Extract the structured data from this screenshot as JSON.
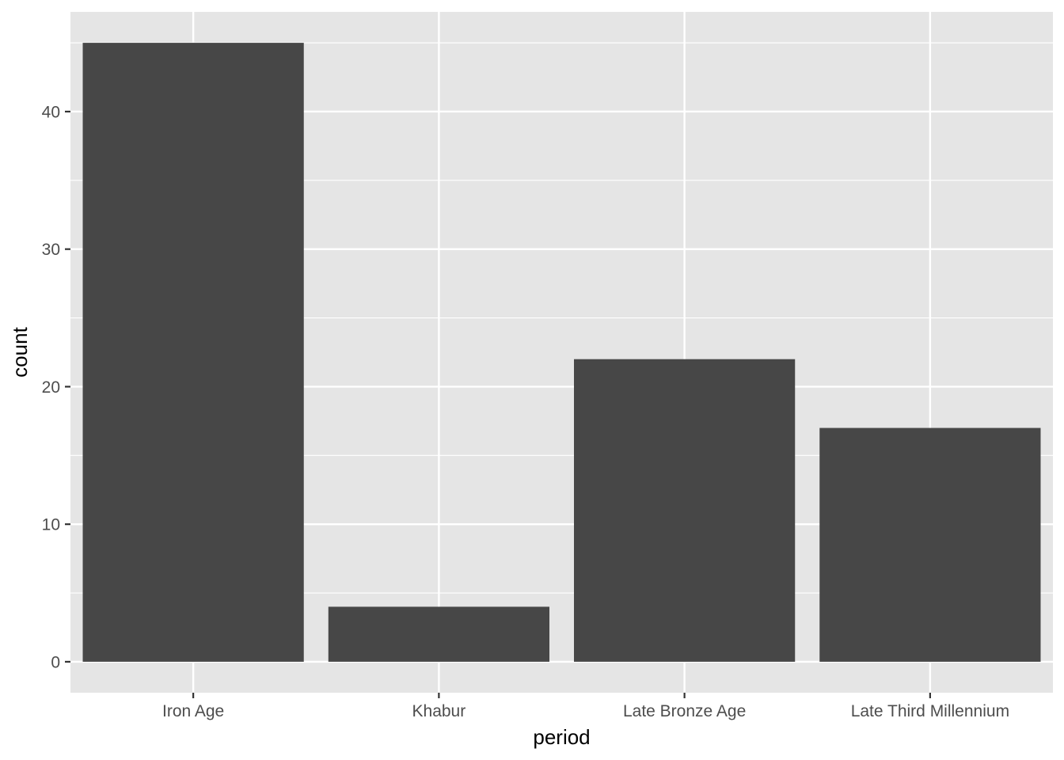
{
  "chart_data": {
    "type": "bar",
    "categories": [
      "Iron Age",
      "Khabur",
      "Late Bronze Age",
      "Late Third Millennium"
    ],
    "values": [
      45,
      4,
      22,
      17
    ],
    "title": "",
    "xlabel": "period",
    "ylabel": "count",
    "ylim": [
      -2.25,
      47.25
    ],
    "yticks": [
      0,
      10,
      20,
      30,
      40
    ],
    "grid": true,
    "legend": "none",
    "colors": {
      "panel_background": "#e5e5e5",
      "grid": "#ffffff",
      "bar_fill": "#474747",
      "tick_text": "#4d4d4d",
      "tick_mark": "#333333",
      "axis_title": "#000000"
    }
  }
}
